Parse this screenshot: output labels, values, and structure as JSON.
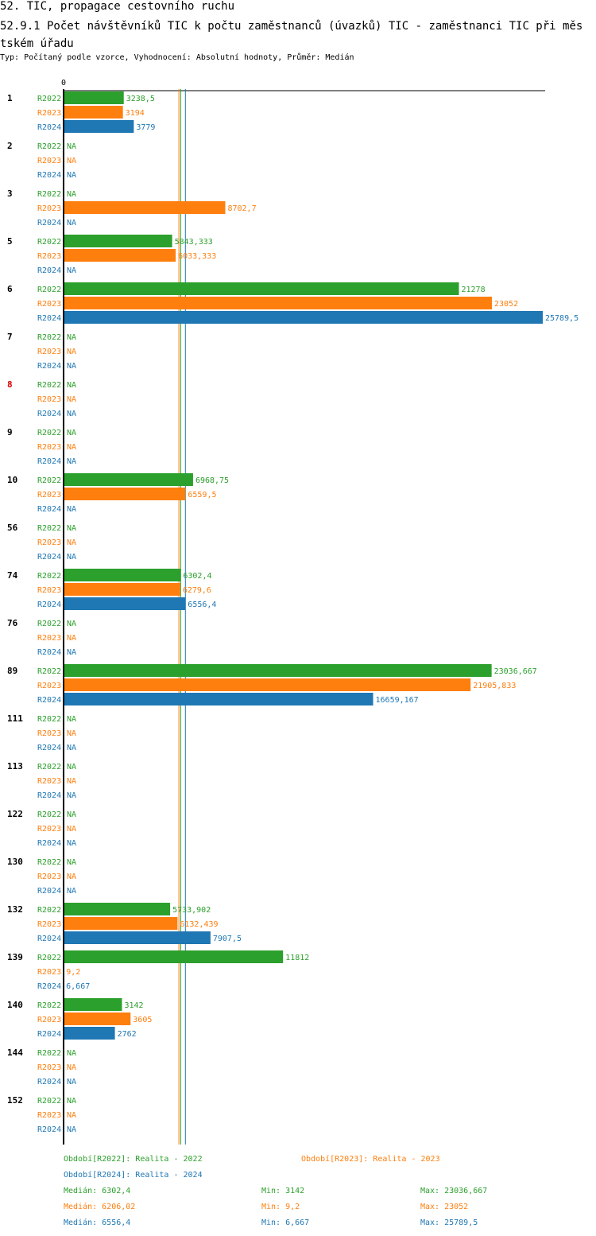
{
  "header": {
    "title": "52. TIC, propagace cestovního ruchu",
    "subtitle": "52.9.1 Počet návštěvníků TIC k počtu zaměstnanců (úvazků) TIC - zaměstnanci TIC při městském úřadu",
    "info": "Typ: Počítaný podle vzorce, Vyhodnocení: Absolutní hodnoty, Průměr: Medián"
  },
  "colors": {
    "R2022": "#2ca02c",
    "R2023": "#ff7f0e",
    "R2024": "#1f77b4",
    "highlight": "#dd0000"
  },
  "chart_data": {
    "type": "bar",
    "orientation": "horizontal",
    "title": "52.9.1 Počet návštěvníků TIC k počtu zaměstnanců (úvazků) TIC - zaměstnanci TIC při městském úřadu",
    "axis_zero_label": "0",
    "xlim": [
      0,
      25789.5
    ],
    "series_names": [
      "R2022",
      "R2023",
      "R2024"
    ],
    "na_label": "NA",
    "categories": [
      {
        "id": "1",
        "highlight": false,
        "values": [
          3238.5,
          3194,
          3779
        ],
        "labels": [
          "3238,5",
          "3194",
          "3779"
        ]
      },
      {
        "id": "2",
        "highlight": false,
        "values": [
          null,
          null,
          null
        ],
        "labels": [
          "NA",
          "NA",
          "NA"
        ]
      },
      {
        "id": "3",
        "highlight": false,
        "values": [
          null,
          8702.7,
          null
        ],
        "labels": [
          "NA",
          "8702,7",
          "NA"
        ]
      },
      {
        "id": "5",
        "highlight": false,
        "values": [
          5843.333,
          6033.333,
          null
        ],
        "labels": [
          "5843,333",
          "6033,333",
          "NA"
        ]
      },
      {
        "id": "6",
        "highlight": false,
        "values": [
          21278,
          23052,
          25789.5
        ],
        "labels": [
          "21278",
          "23052",
          "25789,5"
        ]
      },
      {
        "id": "7",
        "highlight": false,
        "values": [
          null,
          null,
          null
        ],
        "labels": [
          "NA",
          "NA",
          "NA"
        ]
      },
      {
        "id": "8",
        "highlight": true,
        "values": [
          null,
          null,
          null
        ],
        "labels": [
          "NA",
          "NA",
          "NA"
        ]
      },
      {
        "id": "9",
        "highlight": false,
        "values": [
          null,
          null,
          null
        ],
        "labels": [
          "NA",
          "NA",
          "NA"
        ]
      },
      {
        "id": "10",
        "highlight": false,
        "values": [
          6968.75,
          6559.5,
          null
        ],
        "labels": [
          "6968,75",
          "6559,5",
          "NA"
        ]
      },
      {
        "id": "56",
        "highlight": false,
        "values": [
          null,
          null,
          null
        ],
        "labels": [
          "NA",
          "NA",
          "NA"
        ]
      },
      {
        "id": "74",
        "highlight": false,
        "values": [
          6302.4,
          6279.6,
          6556.4
        ],
        "labels": [
          "6302,4",
          "6279,6",
          "6556,4"
        ]
      },
      {
        "id": "76",
        "highlight": false,
        "values": [
          null,
          null,
          null
        ],
        "labels": [
          "NA",
          "NA",
          "NA"
        ]
      },
      {
        "id": "89",
        "highlight": false,
        "values": [
          23036.667,
          21905.833,
          16659.167
        ],
        "labels": [
          "23036,667",
          "21905,833",
          "16659,167"
        ]
      },
      {
        "id": "111",
        "highlight": false,
        "values": [
          null,
          null,
          null
        ],
        "labels": [
          "NA",
          "NA",
          "NA"
        ]
      },
      {
        "id": "113",
        "highlight": false,
        "values": [
          null,
          null,
          null
        ],
        "labels": [
          "NA",
          "NA",
          "NA"
        ]
      },
      {
        "id": "122",
        "highlight": false,
        "values": [
          null,
          null,
          null
        ],
        "labels": [
          "NA",
          "NA",
          "NA"
        ]
      },
      {
        "id": "130",
        "highlight": false,
        "values": [
          null,
          null,
          null
        ],
        "labels": [
          "NA",
          "NA",
          "NA"
        ]
      },
      {
        "id": "132",
        "highlight": false,
        "values": [
          5733.902,
          6132.439,
          7907.5
        ],
        "labels": [
          "5733,902",
          "6132,439",
          "7907,5"
        ]
      },
      {
        "id": "139",
        "highlight": false,
        "values": [
          11812,
          9.2,
          6.667
        ],
        "labels": [
          "11812",
          "9,2",
          "6,667"
        ]
      },
      {
        "id": "140",
        "highlight": false,
        "values": [
          3142,
          3605,
          2762
        ],
        "labels": [
          "3142",
          "3605",
          "2762"
        ]
      },
      {
        "id": "144",
        "highlight": false,
        "values": [
          null,
          null,
          null
        ],
        "labels": [
          "NA",
          "NA",
          "NA"
        ]
      },
      {
        "id": "152",
        "highlight": false,
        "values": [
          null,
          null,
          null
        ],
        "labels": [
          "NA",
          "NA",
          "NA"
        ]
      }
    ],
    "median_lines": [
      6302.4,
      6206.02,
      6556.4
    ],
    "legend": [
      {
        "series": "R2022",
        "label": "Období[R2022]: Realita - 2022"
      },
      {
        "series": "R2023",
        "label": "Období[R2023]: Realita - 2023"
      },
      {
        "series": "R2024",
        "label": "Období[R2024]: Realita - 2024"
      }
    ],
    "stats": [
      {
        "series": "R2022",
        "median": "Medián: 6302,4",
        "min": "Min: 3142",
        "max": "Max: 23036,667"
      },
      {
        "series": "R2023",
        "median": "Medián: 6206,02",
        "min": "Min: 9,2",
        "max": "Max: 23052"
      },
      {
        "series": "R2024",
        "median": "Medián: 6556,4",
        "min": "Min: 6,667",
        "max": "Max: 25789,5"
      }
    ]
  }
}
